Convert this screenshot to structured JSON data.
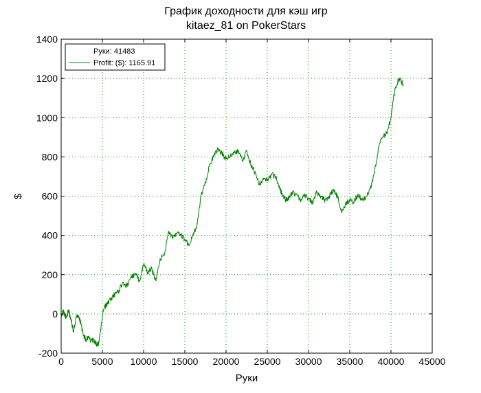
{
  "chart_data": {
    "type": "line",
    "title": "График доходности для кэш игр",
    "subtitle": "kitaez_81 on PokerStars",
    "xlabel": "Руки",
    "ylabel": "$",
    "xlim": [
      0,
      45000
    ],
    "ylim": [
      -200,
      1400
    ],
    "xticks": [
      0,
      5000,
      10000,
      15000,
      20000,
      25000,
      30000,
      35000,
      40000,
      45000
    ],
    "yticks": [
      -200,
      0,
      200,
      400,
      600,
      800,
      1000,
      1200,
      1400
    ],
    "grid": true,
    "legend": {
      "position": "top-left",
      "entries": [
        {
          "label": "Руки: 41483",
          "marker": false
        },
        {
          "label": "Profit: ($): 1165.91",
          "marker": true
        }
      ]
    },
    "line_color": "#008000",
    "series": [
      {
        "name": "Profit: ($): 1165.91",
        "x": [
          0,
          300,
          600,
          900,
          1200,
          1500,
          1800,
          2100,
          2400,
          2700,
          3000,
          3300,
          3600,
          3900,
          4200,
          4500,
          4800,
          5100,
          5400,
          5700,
          6000,
          6500,
          7000,
          7500,
          8000,
          8500,
          9000,
          9500,
          10000,
          10500,
          11000,
          11500,
          12000,
          12500,
          13000,
          13500,
          14000,
          14500,
          15000,
          15500,
          16000,
          16500,
          17000,
          17500,
          18000,
          18500,
          19000,
          19500,
          20000,
          20500,
          21000,
          21500,
          22000,
          22500,
          23000,
          23500,
          24000,
          24500,
          25000,
          25500,
          26000,
          26500,
          27000,
          27500,
          28000,
          28500,
          29000,
          29500,
          30000,
          30500,
          31000,
          31500,
          32000,
          32500,
          33000,
          33500,
          34000,
          34500,
          35000,
          35500,
          36000,
          36500,
          37000,
          37500,
          38000,
          38500,
          39000,
          39500,
          40000,
          40500,
          41000,
          41483
        ],
        "y": [
          0,
          10,
          -20,
          20,
          -30,
          -90,
          -20,
          -10,
          -50,
          -110,
          -130,
          -120,
          -140,
          -130,
          -150,
          -160,
          -80,
          20,
          40,
          60,
          70,
          100,
          120,
          160,
          140,
          190,
          200,
          170,
          250,
          210,
          230,
          170,
          280,
          300,
          420,
          390,
          410,
          400,
          380,
          350,
          400,
          460,
          610,
          670,
          760,
          800,
          840,
          820,
          790,
          800,
          820,
          830,
          780,
          830,
          760,
          720,
          660,
          690,
          680,
          710,
          700,
          640,
          590,
          580,
          620,
          610,
          580,
          600,
          590,
          560,
          620,
          600,
          580,
          600,
          630,
          600,
          520,
          560,
          580,
          570,
          610,
          580,
          600,
          640,
          720,
          850,
          900,
          920,
          1000,
          1150,
          1200,
          1165.91
        ]
      }
    ]
  }
}
